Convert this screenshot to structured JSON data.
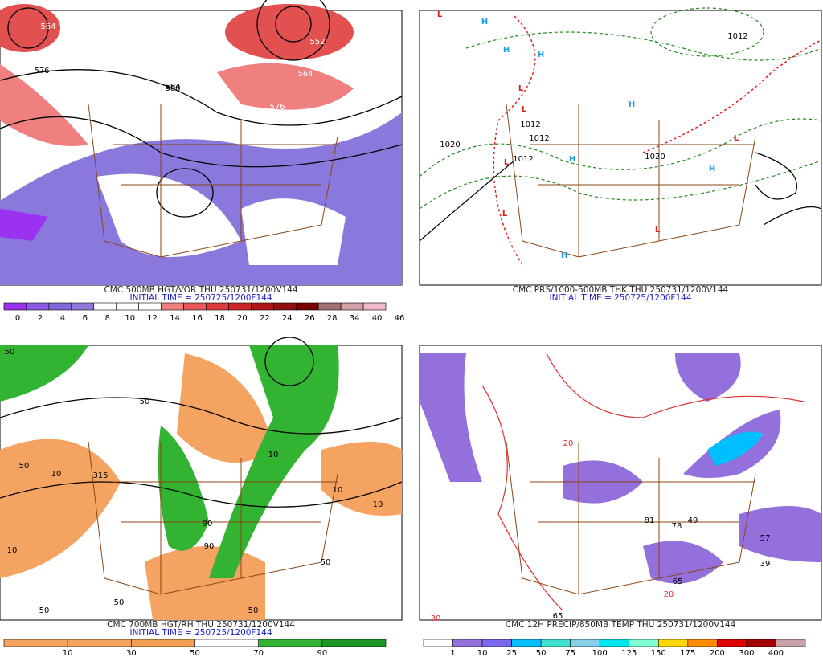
{
  "panels": [
    {
      "caption": "CMC 500MB HGT/VOR THU 250731/1200V144",
      "initial": "INITIAL TIME = 250725/1200F144",
      "map_labels": [
        "564",
        "576",
        "584",
        "588",
        "552",
        "564",
        "576"
      ],
      "colorbar": {
        "colors": [
          "#9a32f0",
          "#8b5ce6",
          "#8068d8",
          "#9478d8",
          "#ffffff",
          "#ffffff",
          "#ffffff",
          "#f08080",
          "#e85a5a",
          "#dc3c3c",
          "#cd2626",
          "#b01818",
          "#901010",
          "#780000",
          "#a07070",
          "#d4a0a8",
          "#f0b8c8"
        ],
        "labels": [
          "0",
          "2",
          "4",
          "6",
          "8",
          "10",
          "12",
          "14",
          "16",
          "18",
          "20",
          "22",
          "24",
          "26",
          "28",
          "34",
          "40",
          "46"
        ]
      }
    },
    {
      "caption": "CMC PRS/1000-500MB THK THU 250731/1200V144",
      "initial": "INITIAL TIME = 250725/1200F144",
      "map_labels": [
        "L",
        "H",
        "H",
        "H",
        "L",
        "L",
        "H",
        "L",
        "L",
        "H",
        "H",
        "L",
        "L",
        "H",
        "1020",
        "1012",
        "1012",
        "1012",
        "1020",
        "1012"
      ]
    },
    {
      "caption": "CMC 700MB HGT/RH THU 250731/1200V144",
      "initial": "INITIAL TIME = 250725/1200F144",
      "map_labels": [
        "50",
        "50",
        "10",
        "315",
        "10",
        "50",
        "90",
        "50",
        "10",
        "10",
        "50",
        "90",
        "50",
        "10",
        "50"
      ],
      "colorbar": {
        "colors": [
          "#f4a460",
          "#f4a460",
          "#f0a050",
          "#ffffff",
          "#32b432",
          "#1e9628"
        ],
        "labels": [
          "10",
          "30",
          "50",
          "70",
          "90"
        ]
      }
    },
    {
      "caption": "CMC 12H PRECIP/850MB TEMP THU 250731/1200V144",
      "map_labels": [
        "81",
        "78",
        "49",
        "57",
        "39",
        "65",
        "65",
        "20",
        "20",
        "30"
      ],
      "colorbar": {
        "colors": [
          "#ffffff",
          "#9370db",
          "#7b68ee",
          "#00bfff",
          "#40e0d0",
          "#87ceeb",
          "#00e5ee",
          "#7fffd4",
          "#ffd700",
          "#ff8c00",
          "#e00000",
          "#a00000",
          "#c8a0a8"
        ],
        "labels": [
          "1",
          "10",
          "25",
          "50",
          "75",
          "100",
          "125",
          "150",
          "175",
          "200",
          "300",
          "400"
        ]
      }
    }
  ]
}
